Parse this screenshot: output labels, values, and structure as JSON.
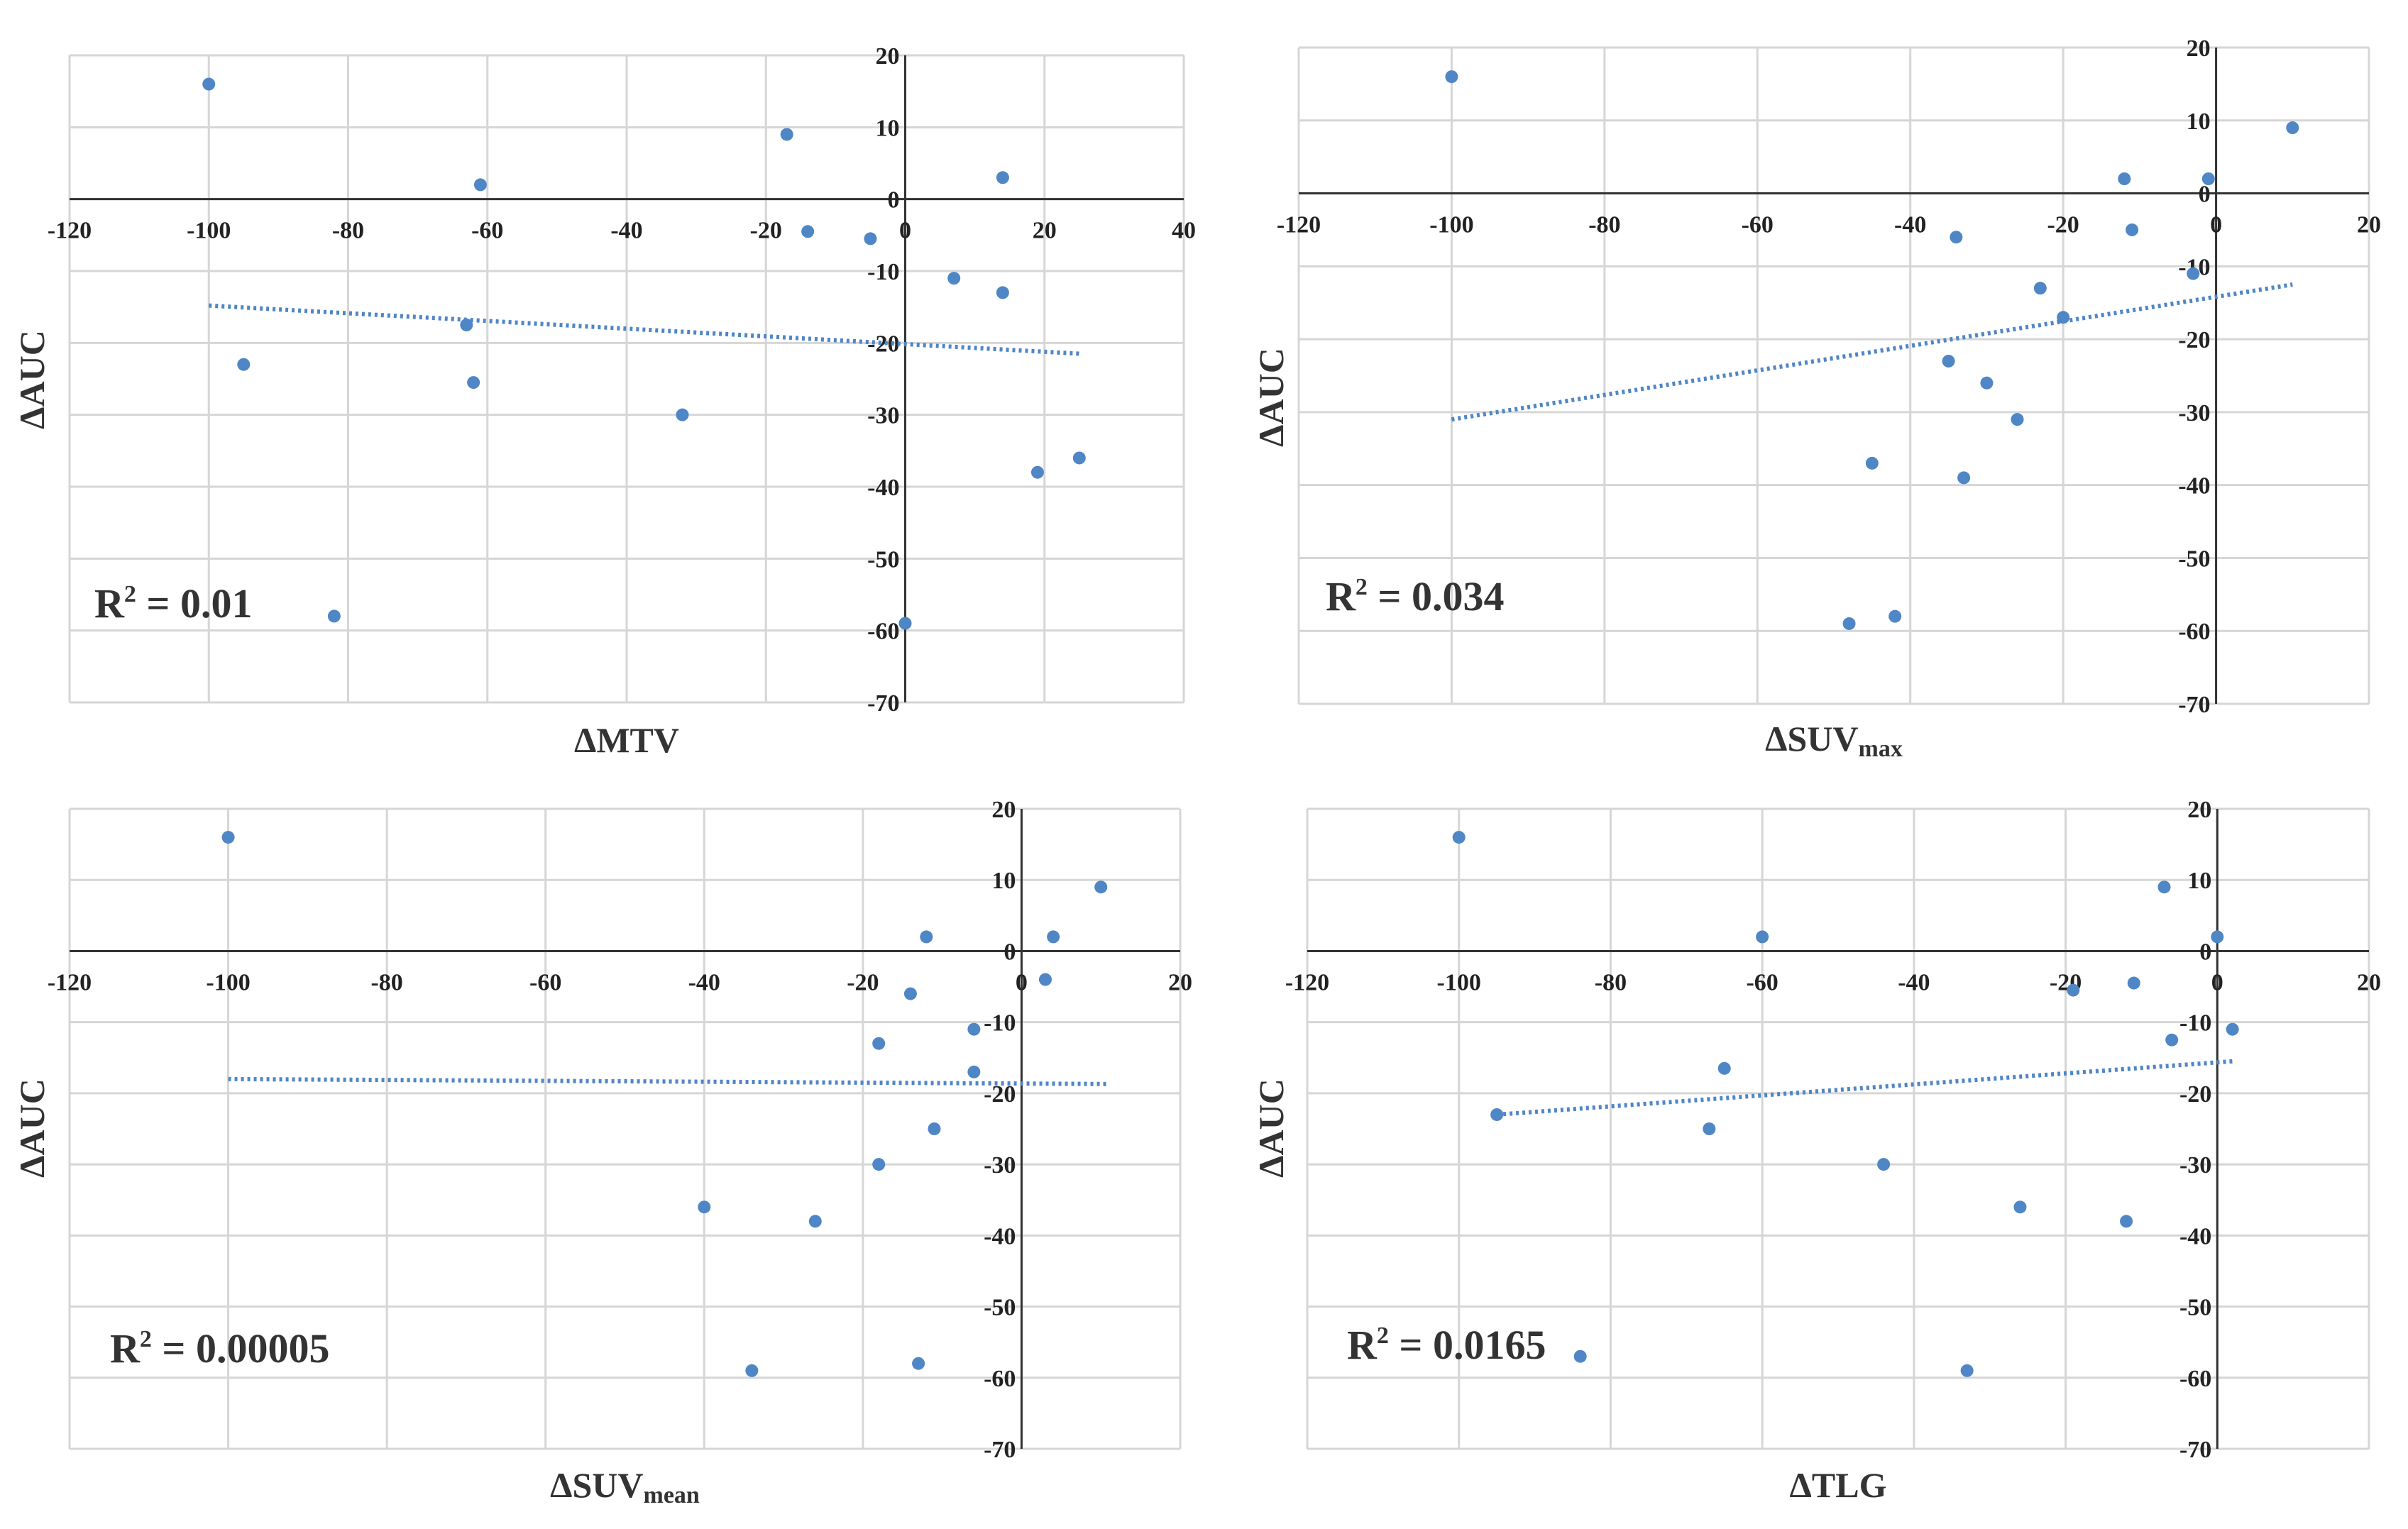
{
  "colors": {
    "point": "#4f86c6",
    "trend": "#4f86c6",
    "grid": "#d6d6d6",
    "axis": "#333333"
  },
  "chart_data": [
    {
      "type": "scatter",
      "xlabel": "ΔMTV",
      "xlabel_main": "ΔMTV",
      "xlabel_sub": "",
      "ylabel": "ΔAUC",
      "r2_label": "R",
      "r2_sup": "2",
      "r2_value": " = 0.01",
      "xlim": [
        -120,
        40
      ],
      "ylim": [
        -70,
        20
      ],
      "xticks": [
        -120,
        -100,
        -80,
        -60,
        -40,
        -20,
        0,
        20,
        40
      ],
      "yticks": [
        -70,
        -60,
        -50,
        -40,
        -30,
        -20,
        -10,
        0,
        10,
        20
      ],
      "x": [
        -100,
        -95,
        -82,
        -63,
        -62,
        -61,
        -32,
        -17,
        -14,
        -5,
        0,
        7,
        14,
        14,
        19,
        25
      ],
      "y": [
        16,
        -23,
        -58,
        -17.5,
        -25.5,
        2,
        -30,
        9,
        -4.5,
        -5.5,
        -59,
        -11,
        -13,
        3,
        -38,
        -36
      ],
      "trendline": {
        "x": [
          -100,
          25
        ],
        "y": [
          -14.8,
          -21.5
        ]
      }
    },
    {
      "type": "scatter",
      "xlabel": "ΔSUVmax",
      "xlabel_main": "ΔSUV",
      "xlabel_sub": "max",
      "ylabel": "ΔAUC",
      "r2_label": "R",
      "r2_sup": "2",
      "r2_value": " = 0.034",
      "xlim": [
        -120,
        20
      ],
      "ylim": [
        -70,
        20
      ],
      "xticks": [
        -120,
        -100,
        -80,
        -60,
        -40,
        -20,
        0,
        20
      ],
      "yticks": [
        -70,
        -60,
        -50,
        -40,
        -30,
        -20,
        -10,
        0,
        10,
        20
      ],
      "x": [
        -100,
        -48,
        -45,
        -42,
        -35,
        -34,
        -33,
        -30,
        -26,
        -23,
        -20,
        -12,
        -11,
        -3,
        -1,
        10
      ],
      "y": [
        16,
        -59,
        -37,
        -58,
        -23,
        -6,
        -39,
        -26,
        -31,
        -13,
        -17,
        2,
        -5,
        -11,
        2,
        9
      ],
      "trendline": {
        "x": [
          -100,
          10
        ],
        "y": [
          -31,
          -12.5
        ]
      }
    },
    {
      "type": "scatter",
      "xlabel": "ΔSUVmean",
      "xlabel_main": "ΔSUV",
      "xlabel_sub": "mean",
      "ylabel": "ΔAUC",
      "r2_label": "R",
      "r2_sup": "2",
      "r2_value": " = 0.00005",
      "xlim": [
        -120,
        20
      ],
      "ylim": [
        -70,
        20
      ],
      "xticks": [
        -120,
        -100,
        -80,
        -60,
        -40,
        -20,
        0,
        20
      ],
      "yticks": [
        -70,
        -60,
        -50,
        -40,
        -30,
        -20,
        -10,
        0,
        10,
        20
      ],
      "x": [
        -100,
        -40,
        -34,
        -26,
        -18,
        -18,
        -14,
        -13,
        -12,
        -11,
        -6,
        -6,
        3,
        4,
        10
      ],
      "y": [
        16,
        -36,
        -59,
        -38,
        -30,
        -13,
        -6,
        -58,
        2,
        -25,
        -17,
        -11,
        -4,
        2,
        9
      ],
      "trendline": {
        "x": [
          -100,
          11
        ],
        "y": [
          -18,
          -18.7
        ]
      }
    },
    {
      "type": "scatter",
      "xlabel": "ΔTLG",
      "xlabel_main": "ΔTLG",
      "xlabel_sub": "",
      "ylabel": "ΔAUC",
      "r2_label": "R",
      "r2_sup": "2",
      "r2_value": " = 0.0165",
      "xlim": [
        -120,
        20
      ],
      "ylim": [
        -70,
        20
      ],
      "xticks": [
        -120,
        -100,
        -80,
        -60,
        -40,
        -20,
        0,
        20
      ],
      "yticks": [
        -70,
        -60,
        -50,
        -40,
        -30,
        -20,
        -10,
        0,
        10,
        20
      ],
      "x": [
        -100,
        -95,
        -84,
        -67,
        -65,
        -60,
        -44,
        -33,
        -26,
        -19,
        -12,
        -11,
        -7,
        -6,
        0,
        2
      ],
      "y": [
        16,
        -23,
        -57,
        -25,
        -16.5,
        2,
        -30,
        -59,
        -36,
        -5.5,
        -38,
        -4.5,
        9,
        -12.5,
        2,
        -11
      ],
      "trendline": {
        "x": [
          -95,
          2
        ],
        "y": [
          -23,
          -15.5
        ]
      }
    }
  ]
}
